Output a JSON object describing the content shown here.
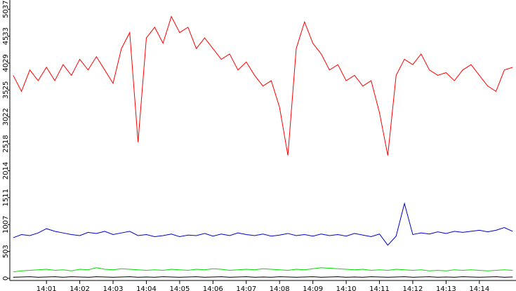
{
  "chart_data": {
    "type": "line",
    "x": [
      0,
      0.25,
      0.5,
      0.75,
      1,
      1.25,
      1.5,
      1.75,
      2,
      2.25,
      2.5,
      2.75,
      3,
      3.25,
      3.5,
      3.75,
      4,
      4.25,
      4.5,
      4.75,
      5,
      5.25,
      5.5,
      5.75,
      6,
      6.25,
      6.5,
      6.75,
      7,
      7.25,
      7.5,
      7.75,
      8,
      8.25,
      8.5,
      8.75,
      9,
      9.25,
      9.5,
      9.75,
      10,
      10.25,
      10.5,
      10.75,
      11,
      11.25,
      11.5,
      11.75,
      12,
      12.25,
      12.5,
      12.75,
      13,
      13.25,
      13.5,
      13.75,
      14,
      14.25,
      14.5,
      14.75,
      15
    ],
    "series": [
      {
        "color": "#ff0000",
        "values": [
          3800,
          3500,
          3900,
          3700,
          3950,
          3700,
          4000,
          3800,
          4100,
          3900,
          4150,
          3900,
          3650,
          4300,
          4600,
          2550,
          4500,
          4700,
          4400,
          4900,
          4600,
          4700,
          4300,
          4500,
          4300,
          4100,
          4200,
          3900,
          4050,
          3800,
          3600,
          3700,
          3200,
          2300,
          4300,
          4800,
          4400,
          4200,
          3900,
          4000,
          3700,
          3800,
          3600,
          3700,
          3100,
          2300,
          3800,
          4100,
          4000,
          4200,
          3900,
          3800,
          3850,
          3700,
          3900,
          4000,
          3800,
          3600,
          3500,
          3900,
          3950
        ]
      },
      {
        "color": "#0000cc",
        "values": [
          760,
          820,
          800,
          850,
          930,
          880,
          850,
          820,
          800,
          860,
          840,
          880,
          820,
          850,
          880,
          800,
          820,
          780,
          800,
          830,
          780,
          810,
          800,
          840,
          790,
          830,
          800,
          850,
          820,
          800,
          830,
          790,
          810,
          840,
          800,
          820,
          790,
          830,
          800,
          820,
          790,
          840,
          810,
          780,
          830,
          620,
          790,
          1400,
          820,
          850,
          830,
          870,
          840,
          880,
          860,
          880,
          900,
          870,
          900,
          950,
          880
        ]
      },
      {
        "color": "#00dd00",
        "values": [
          120,
          140,
          150,
          160,
          170,
          150,
          160,
          140,
          170,
          160,
          200,
          170,
          160,
          180,
          170,
          160,
          150,
          160,
          150,
          170,
          160,
          150,
          170,
          160,
          180,
          170,
          150,
          160,
          170,
          160,
          180,
          170,
          160,
          150,
          170,
          160,
          180,
          200,
          190,
          180,
          170,
          160,
          170,
          150,
          160,
          150,
          170,
          160,
          150,
          160,
          140,
          150,
          140,
          160,
          150,
          160,
          150,
          140,
          150,
          160,
          150
        ]
      },
      {
        "color": "#000000",
        "values": [
          20,
          25,
          30,
          20,
          25,
          30,
          20,
          30,
          25,
          20,
          30,
          25,
          20,
          25,
          30,
          20,
          25,
          20,
          30,
          25,
          20,
          25,
          30,
          20,
          25,
          30,
          20,
          25,
          30,
          20,
          25,
          20,
          30,
          25,
          20,
          25,
          30,
          20,
          25,
          30,
          20,
          25,
          20,
          30,
          25,
          20,
          25,
          30,
          20,
          25,
          30,
          20,
          25,
          20,
          30,
          25,
          20,
          25,
          30,
          20,
          25
        ]
      }
    ],
    "xlim": [
      -0.1,
      15.1
    ],
    "xticks": [
      {
        "value": 1,
        "label": "14:01"
      },
      {
        "value": 2,
        "label": "14:02"
      },
      {
        "value": 3,
        "label": "14:03"
      },
      {
        "value": 4,
        "label": "14:04"
      },
      {
        "value": 5,
        "label": "14:05"
      },
      {
        "value": 6,
        "label": "14:06"
      },
      {
        "value": 7,
        "label": "14:07"
      },
      {
        "value": 8,
        "label": "14:08"
      },
      {
        "value": 9,
        "label": "14:09"
      },
      {
        "value": 10,
        "label": "14:10"
      },
      {
        "value": 11,
        "label": "14:11"
      },
      {
        "value": 12,
        "label": "14:12"
      },
      {
        "value": 13,
        "label": "14:13"
      },
      {
        "value": 14,
        "label": "14:14"
      }
    ],
    "ylim": [
      -40,
      5210
    ],
    "yticks": [
      0,
      503,
      1007,
      1511,
      2014,
      2518,
      3022,
      3525,
      4029,
      4533,
      5037
    ]
  }
}
